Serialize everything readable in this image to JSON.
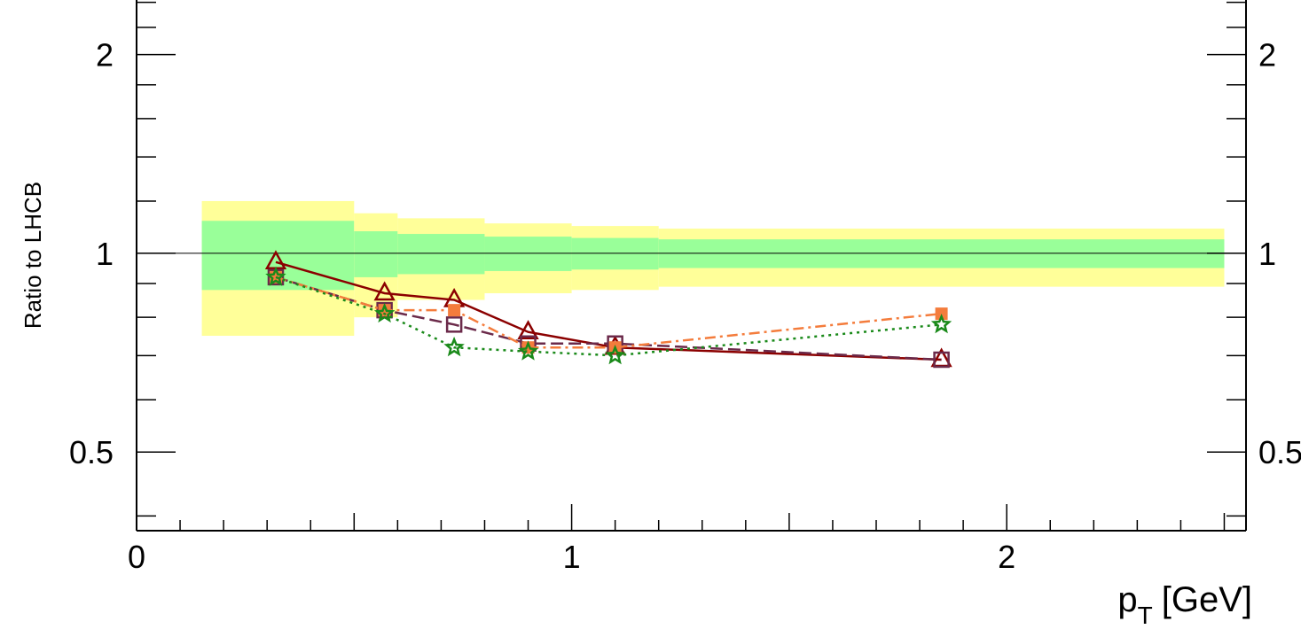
{
  "chart_data": {
    "type": "line",
    "title": "",
    "xlabel": "p",
    "xlabel_sub": "T",
    "xlabel_unit": "[GeV]",
    "ylabel": "Ratio to LHCB",
    "xlim": [
      0,
      2.55
    ],
    "ylim": [
      0.38,
      2.45
    ],
    "y_scale": "log",
    "x_ticks": [
      0,
      1,
      2
    ],
    "x_tick_labels": [
      "0",
      "1",
      "2"
    ],
    "y_ticks": [
      0.5,
      1,
      2
    ],
    "y_tick_labels": [
      "0.5",
      "1",
      "2"
    ],
    "y_tick_labels_right": [
      "0.5",
      "1",
      "2"
    ],
    "reference_line": 1,
    "uncertainty_bands": {
      "x_edges": [
        0.15,
        0.5,
        0.6,
        0.8,
        1.0,
        1.2,
        2.5
      ],
      "inner_colour": "#99ff99",
      "outer_colour": "#ffff99",
      "inner": [
        {
          "lo": 0.88,
          "hi": 1.12
        },
        {
          "lo": 0.92,
          "hi": 1.08
        },
        {
          "lo": 0.93,
          "hi": 1.07
        },
        {
          "lo": 0.94,
          "hi": 1.06
        },
        {
          "lo": 0.945,
          "hi": 1.055
        },
        {
          "lo": 0.95,
          "hi": 1.05
        }
      ],
      "outer": [
        {
          "lo": 0.75,
          "hi": 1.2
        },
        {
          "lo": 0.8,
          "hi": 1.15
        },
        {
          "lo": 0.85,
          "hi": 1.13
        },
        {
          "lo": 0.87,
          "hi": 1.11
        },
        {
          "lo": 0.88,
          "hi": 1.1
        },
        {
          "lo": 0.89,
          "hi": 1.09
        }
      ]
    },
    "series": [
      {
        "marker": "triangle",
        "line": "solid",
        "colour": "#8b0000",
        "x": [
          0.32,
          0.57,
          0.73,
          0.9,
          1.1,
          1.85
        ],
        "y": [
          0.97,
          0.87,
          0.85,
          0.76,
          0.72,
          0.69
        ]
      },
      {
        "marker": "open-square",
        "line": "dashed",
        "colour": "#6b2a4a",
        "x": [
          0.32,
          0.57,
          0.73,
          0.9,
          1.1,
          1.85
        ],
        "y": [
          0.92,
          0.82,
          0.78,
          0.73,
          0.73,
          0.69
        ]
      },
      {
        "marker": "filled-square",
        "line": "dash-dot",
        "colour": "#f47c3c",
        "x": [
          0.32,
          0.57,
          0.73,
          0.9,
          1.1,
          1.85
        ],
        "y": [
          0.92,
          0.82,
          0.82,
          0.72,
          0.72,
          0.81
        ]
      },
      {
        "marker": "star",
        "line": "dotted",
        "colour": "#1a8a1a",
        "x": [
          0.32,
          0.57,
          0.73,
          0.9,
          1.1,
          1.85
        ],
        "y": [
          0.92,
          0.81,
          0.72,
          0.71,
          0.7,
          0.78
        ]
      }
    ]
  }
}
